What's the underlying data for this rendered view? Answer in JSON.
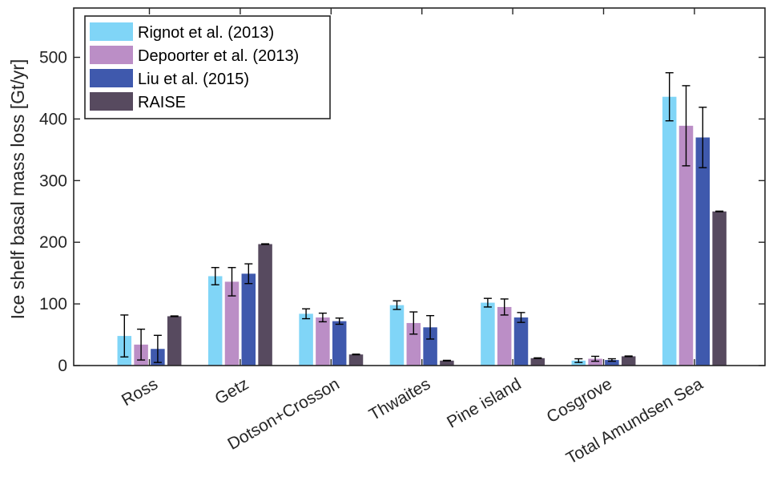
{
  "chart_data": {
    "type": "bar",
    "title": "",
    "xlabel": "",
    "ylabel": "Ice shelf basal mass loss [Gt/yr]",
    "ylim": [
      0,
      580
    ],
    "yticks": [
      0,
      100,
      200,
      300,
      400,
      500
    ],
    "grid": false,
    "legend_position": "top-left",
    "categories": [
      "Ross",
      "Getz",
      "Dotson+Crosson",
      "Thwaites",
      "Pine island",
      "Cosgrove",
      "Total Amundsen Sea"
    ],
    "series": [
      {
        "name": "Rignot et al. (2013)",
        "color": "#80d5f7",
        "values": [
          48,
          145,
          84,
          98,
          102,
          8,
          436
        ],
        "error": [
          34,
          14,
          8,
          7,
          7,
          3,
          39
        ]
      },
      {
        "name": "Depoorter et al. (2013)",
        "color": "#bb8ec6",
        "values": [
          34,
          136,
          78,
          69,
          95,
          11,
          389
        ],
        "error": [
          25,
          23,
          7,
          18,
          13,
          4,
          65
        ]
      },
      {
        "name": "Liu et al. (2015)",
        "color": "#3f59ad",
        "values": [
          27,
          149,
          72,
          62,
          78,
          9,
          370
        ],
        "error": [
          22,
          16,
          5,
          19,
          8,
          2,
          49
        ]
      },
      {
        "name": "RAISE",
        "color": "#574a5f",
        "values": [
          80,
          197,
          18,
          8,
          12,
          15,
          250
        ],
        "error": [
          0.5,
          0.5,
          0.5,
          0.5,
          0.5,
          0.5,
          0.5
        ]
      }
    ]
  }
}
